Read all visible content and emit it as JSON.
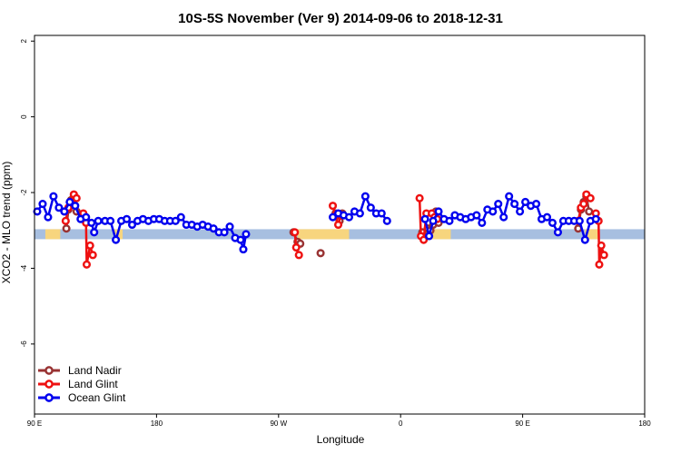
{
  "chart_data": {
    "type": "line",
    "title": "10S-5S November (Ver 9)   2014-09-06 to 2018-12-31",
    "xlabel": "Longitude",
    "ylabel": "XCO2 - MLO trend (ppm)",
    "xlim": [
      90,
      540
    ],
    "ylim": [
      -7.85,
      2.15
    ],
    "x_ticks": [
      {
        "value": 90,
        "label": "90 E"
      },
      {
        "value": 180,
        "label": "180"
      },
      {
        "value": 270,
        "label": "90 W"
      },
      {
        "value": 360,
        "label": "0"
      },
      {
        "value": 450,
        "label": "90 E"
      },
      {
        "value": 540,
        "label": "180"
      }
    ],
    "y_ticks": [
      {
        "value": 2,
        "label": "2"
      },
      {
        "value": 0,
        "label": "0"
      },
      {
        "value": -2,
        "label": "-2"
      },
      {
        "value": -4,
        "label": "-4"
      },
      {
        "value": -6,
        "label": "-6"
      }
    ],
    "surface_band": {
      "y_center": -3.1,
      "ocean_color": "#a7bfe0",
      "land_color": "#f7d57e",
      "land_segments": [
        [
          98,
          109
        ],
        [
          149,
          155
        ],
        [
          284,
          322
        ],
        [
          378,
          397
        ],
        [
          496,
          506
        ]
      ]
    },
    "legend_position": "bottom-left",
    "series": [
      {
        "name": "Land Nadir",
        "color": "#993333",
        "segments": [
          [
            [
              113.5,
              -2.95
            ],
            [
              115,
              -2.45
            ],
            [
              117,
              -2.2
            ],
            [
              119,
              -2.1
            ],
            [
              121,
              -2.5
            ]
          ],
          [
            [
              281,
              -3.05
            ],
            [
              284,
              -3.3
            ],
            [
              286,
              -3.35
            ]
          ],
          [
            [
              301,
              -3.6
            ]
          ],
          [
            [
              312,
              -2.55
            ],
            [
              314,
              -2.65
            ],
            [
              315,
              -2.75
            ],
            [
              317,
              -2.55
            ]
          ],
          [
            [
              376,
              -3.05
            ],
            [
              380,
              -2.95
            ],
            [
              382,
              -3.0
            ],
            [
              384,
              -2.85
            ],
            [
              386,
              -2.5
            ],
            [
              388,
              -2.8
            ]
          ],
          [
            [
              491,
              -2.95
            ],
            [
              493,
              -2.45
            ],
            [
              495,
              -2.25
            ],
            [
              497,
              -2.1
            ],
            [
              499,
              -2.5
            ]
          ]
        ]
      },
      {
        "name": "Land Glint",
        "color": "#ee1111",
        "segments": [
          [
            [
              113,
              -2.75
            ],
            [
              115,
              -2.4
            ],
            [
              117,
              -2.25
            ],
            [
              119,
              -2.05
            ],
            [
              121,
              -2.15
            ]
          ],
          [
            [
              126,
              -2.55
            ],
            [
              128,
              -2.8
            ],
            [
              128.5,
              -3.9
            ],
            [
              131,
              -3.4
            ],
            [
              133,
              -3.65
            ]
          ],
          [
            [
              282,
              -3.05
            ],
            [
              283,
              -3.45
            ],
            [
              285,
              -3.65
            ]
          ],
          [
            [
              310,
              -2.35
            ],
            [
              312,
              -2.6
            ],
            [
              314,
              -2.85
            ],
            [
              316,
              -2.6
            ]
          ],
          [
            [
              374,
              -2.15
            ],
            [
              375,
              -3.15
            ],
            [
              377,
              -3.25
            ],
            [
              379,
              -2.55
            ],
            [
              383,
              -2.55
            ],
            [
              385,
              -2.65
            ],
            [
              387,
              -2.7
            ]
          ],
          [
            [
              491,
              -2.75
            ],
            [
              493,
              -2.4
            ],
            [
              495,
              -2.3
            ],
            [
              497,
              -2.05
            ],
            [
              500,
              -2.15
            ]
          ],
          [
            [
              504,
              -2.55
            ],
            [
              506,
              -2.75
            ],
            [
              506.5,
              -3.9
            ],
            [
              508,
              -3.4
            ],
            [
              510,
              -3.65
            ]
          ]
        ]
      },
      {
        "name": "Ocean Glint",
        "color": "#0000ee",
        "segments": [
          [
            [
              92,
              -2.5
            ],
            [
              96,
              -2.3
            ],
            [
              100,
              -2.65
            ],
            [
              104,
              -2.1
            ],
            [
              108,
              -2.4
            ],
            [
              112,
              -2.5
            ],
            [
              116,
              -2.25
            ],
            [
              120,
              -2.35
            ],
            [
              124,
              -2.7
            ],
            [
              128,
              -2.65
            ],
            [
              132,
              -2.8
            ],
            [
              134,
              -3.05
            ],
            [
              137,
              -2.75
            ],
            [
              142,
              -2.75
            ],
            [
              146,
              -2.75
            ],
            [
              150,
              -3.25
            ],
            [
              154,
              -2.75
            ],
            [
              158,
              -2.7
            ],
            [
              162,
              -2.85
            ],
            [
              166,
              -2.75
            ],
            [
              170,
              -2.7
            ],
            [
              174,
              -2.75
            ],
            [
              178,
              -2.7
            ],
            [
              182,
              -2.7
            ],
            [
              186,
              -2.75
            ],
            [
              190,
              -2.75
            ],
            [
              194,
              -2.75
            ],
            [
              198,
              -2.65
            ],
            [
              202,
              -2.85
            ],
            [
              206,
              -2.85
            ],
            [
              210,
              -2.9
            ],
            [
              214,
              -2.85
            ],
            [
              218,
              -2.9
            ],
            [
              222,
              -2.95
            ],
            [
              226,
              -3.05
            ],
            [
              230,
              -3.05
            ],
            [
              234,
              -2.9
            ],
            [
              238,
              -3.2
            ],
            [
              242,
              -3.25
            ],
            [
              244,
              -3.5
            ],
            [
              246,
              -3.1
            ]
          ],
          [
            [
              310,
              -2.65
            ],
            [
              314,
              -2.55
            ],
            [
              318,
              -2.6
            ],
            [
              322,
              -2.65
            ],
            [
              326,
              -2.5
            ],
            [
              330,
              -2.55
            ],
            [
              334,
              -2.1
            ],
            [
              338,
              -2.4
            ],
            [
              342,
              -2.55
            ],
            [
              346,
              -2.55
            ],
            [
              350,
              -2.75
            ]
          ],
          [
            [
              378,
              -2.7
            ],
            [
              381,
              -3.15
            ],
            [
              384,
              -2.75
            ],
            [
              388,
              -2.5
            ],
            [
              392,
              -2.7
            ],
            [
              396,
              -2.75
            ],
            [
              400,
              -2.6
            ],
            [
              404,
              -2.65
            ],
            [
              408,
              -2.7
            ],
            [
              412,
              -2.65
            ],
            [
              416,
              -2.6
            ],
            [
              420,
              -2.8
            ],
            [
              424,
              -2.45
            ],
            [
              428,
              -2.5
            ],
            [
              432,
              -2.3
            ],
            [
              436,
              -2.65
            ],
            [
              440,
              -2.1
            ],
            [
              444,
              -2.3
            ],
            [
              448,
              -2.5
            ],
            [
              452,
              -2.25
            ],
            [
              456,
              -2.35
            ],
            [
              460,
              -2.3
            ],
            [
              464,
              -2.7
            ],
            [
              468,
              -2.65
            ],
            [
              472,
              -2.8
            ],
            [
              476,
              -3.05
            ],
            [
              480,
              -2.75
            ],
            [
              484,
              -2.75
            ],
            [
              488,
              -2.75
            ],
            [
              492,
              -2.75
            ],
            [
              496,
              -3.25
            ],
            [
              500,
              -2.75
            ],
            [
              504,
              -2.7
            ]
          ]
        ]
      }
    ]
  }
}
